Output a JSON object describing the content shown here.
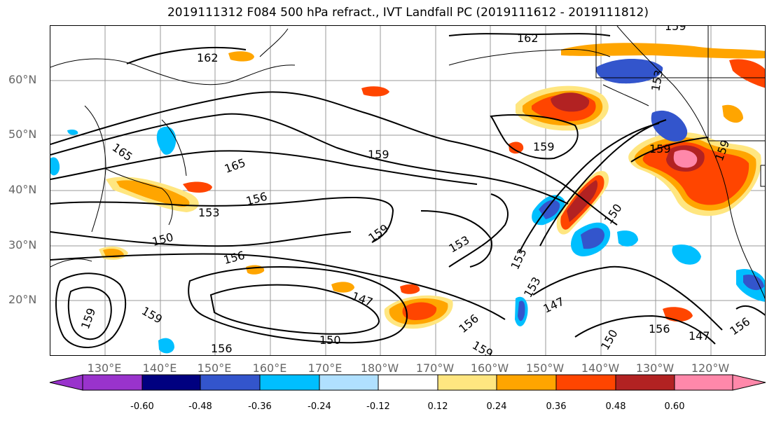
{
  "title": "2019111312 F084 500 hPa refract., IVT Landfall PC (2019111612 - 2019111812)",
  "lat_labels": [
    "60°N",
    "50°N",
    "40°N",
    "30°N",
    "20°N"
  ],
  "lon_labels": [
    "130°E",
    "140°E",
    "150°E",
    "160°E",
    "170°E",
    "180°W",
    "170°W",
    "160°W",
    "150°W",
    "140°W",
    "130°W",
    "120°W"
  ],
  "contour_labels": [
    "162",
    "162",
    "165",
    "165",
    "159",
    "159",
    "159",
    "159",
    "159",
    "156",
    "156",
    "156",
    "153",
    "153",
    "153",
    "153",
    "153",
    "150",
    "150",
    "150",
    "150",
    "147",
    "147",
    "147",
    "159",
    "159",
    "156",
    "156",
    "159",
    "156",
    "159"
  ],
  "colorbar": {
    "ticks": [
      "-0.60",
      "-0.48",
      "-0.36",
      "-0.24",
      "-0.12",
      "0.12",
      "0.24",
      "0.36",
      "0.48",
      "0.60"
    ],
    "colors": [
      "#9933cc",
      "#000080",
      "#3355cc",
      "#00bfff",
      "#b0e0ff",
      "#ffffff",
      "#ffe680",
      "#ffa500",
      "#ff4500",
      "#b22222",
      "#ff88aa",
      "#ff88aa"
    ]
  }
}
